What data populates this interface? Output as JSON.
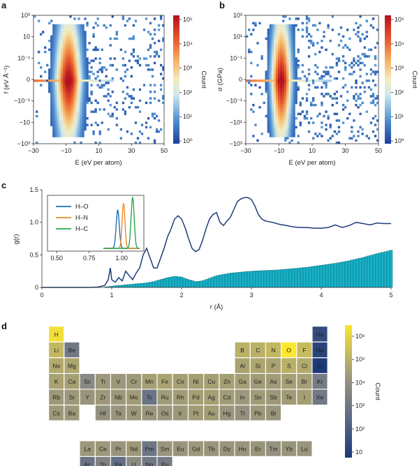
{
  "panels": [
    {
      "letter": "a"
    },
    {
      "letter": "b"
    },
    {
      "letter": "c"
    },
    {
      "letter": "d"
    }
  ],
  "chart_data": [
    {
      "panel": "a",
      "type": "heatmap",
      "xlabel": "E (eV per atom)",
      "ylabel": "f (eV Å⁻¹)",
      "xlim": [
        -30,
        50
      ],
      "xticks": [
        "−30",
        "−10",
        "10",
        "30",
        "50"
      ],
      "yticks": [
        "10³",
        "10",
        "10⁻¹",
        "0",
        "−10⁻¹",
        "−10",
        "−10³"
      ],
      "yscale": "symlog",
      "colorbar": {
        "label": "Count",
        "ticks": [
          "10⁵",
          "10⁴",
          "10³",
          "10²",
          "10¹",
          "10⁰"
        ],
        "range": [
          1,
          300000
        ]
      },
      "density": {
        "peak_E": -8,
        "note_not_rendered": ""
      }
    },
    {
      "panel": "b",
      "type": "heatmap",
      "xlabel": "E (eV per atom)",
      "ylabel": "σ (GPa)",
      "xlim": [
        -30,
        50
      ],
      "xticks": [
        "−30",
        "−10",
        "10",
        "30",
        "50"
      ],
      "yticks": [
        "10³",
        "10¹",
        "10⁻¹",
        "0",
        "−10⁻¹",
        "−10¹",
        "−10³"
      ],
      "yscale": "symlog",
      "colorbar": {
        "label": "Count",
        "ticks": [
          "10⁵",
          "10⁴",
          "10³",
          "10²",
          "10¹",
          "10⁰"
        ],
        "range": [
          1,
          100000
        ]
      }
    },
    {
      "panel": "c",
      "type": "line",
      "xlabel": "r (Å)",
      "ylabel": "g(r)",
      "xlim": [
        0,
        5
      ],
      "ylim": [
        0,
        1.5
      ],
      "xticks": [
        "0",
        "1",
        "2",
        "3",
        "4",
        "5"
      ],
      "yticks": [
        "0",
        "0.5",
        "1.0",
        "1.5"
      ],
      "series": [
        {
          "kind": "line",
          "color": "#1f3a7a",
          "x": [
            0,
            0.7,
            0.8,
            0.9,
            0.95,
            0.98,
            1.0,
            1.05,
            1.1,
            1.15,
            1.2,
            1.25,
            1.3,
            1.35,
            1.4,
            1.45,
            1.5,
            1.55,
            1.6,
            1.65,
            1.7,
            1.75,
            1.8,
            1.85,
            1.9,
            1.95,
            2.0,
            2.05,
            2.1,
            2.15,
            2.2,
            2.25,
            2.3,
            2.35,
            2.4,
            2.45,
            2.5,
            2.55,
            2.6,
            2.65,
            2.7,
            2.75,
            2.8,
            2.85,
            2.9,
            2.95,
            3.0,
            3.05,
            3.1,
            3.15,
            3.2,
            3.3,
            3.4,
            3.5,
            3.6,
            3.7,
            3.8,
            3.9,
            4.0,
            4.1,
            4.2,
            4.3,
            4.4,
            4.5,
            4.6,
            4.7,
            4.8,
            4.9,
            5.0
          ],
          "y": [
            0,
            0,
            0.005,
            0.03,
            0.12,
            0.3,
            0.12,
            0.08,
            0.15,
            0.1,
            0.25,
            0.18,
            0.12,
            0.22,
            0.3,
            0.5,
            0.6,
            0.45,
            0.3,
            0.3,
            0.45,
            0.6,
            0.78,
            0.9,
            1.05,
            1.1,
            1.05,
            0.92,
            0.75,
            0.6,
            0.55,
            0.58,
            0.72,
            0.9,
            1.05,
            1.12,
            1.15,
            1.0,
            0.95,
            1.02,
            1.08,
            1.2,
            1.32,
            1.36,
            1.38,
            1.38,
            1.35,
            1.25,
            1.12,
            1.05,
            1.02,
            1.0,
            0.97,
            0.95,
            0.93,
            0.92,
            0.92,
            0.91,
            0.91,
            0.92,
            0.96,
            0.92,
            0.95,
            1.0,
            0.98,
            0.96,
            0.99,
            0.98,
            0.98
          ]
        },
        {
          "kind": "histogram",
          "color": "#17b3c9",
          "x": [
            0.9,
            1.0,
            1.1,
            1.2,
            1.3,
            1.4,
            1.5,
            1.6,
            1.7,
            1.8,
            1.9,
            2.0,
            2.1,
            2.2,
            2.3,
            2.4,
            2.5,
            2.6,
            2.7,
            2.8,
            2.9,
            3.0,
            3.2,
            3.4,
            3.6,
            3.8,
            4.0,
            4.2,
            4.4,
            4.6,
            4.8,
            5.0
          ],
          "y": [
            0.005,
            0.02,
            0.03,
            0.04,
            0.05,
            0.06,
            0.07,
            0.09,
            0.12,
            0.15,
            0.17,
            0.16,
            0.12,
            0.09,
            0.1,
            0.14,
            0.18,
            0.2,
            0.22,
            0.23,
            0.24,
            0.25,
            0.26,
            0.27,
            0.29,
            0.31,
            0.34,
            0.37,
            0.41,
            0.46,
            0.52,
            0.57
          ]
        }
      ],
      "inset": {
        "xlim": [
          0.45,
          1.15
        ],
        "xticks": [
          "0.50",
          "0.75",
          "1.00"
        ],
        "series": [
          {
            "name": "H–O",
            "color": "#1f6fb4",
            "center": 0.97,
            "width": 0.012,
            "height": 0.75
          },
          {
            "name": "H–N",
            "color": "#f08a24",
            "center": 1.015,
            "width": 0.011,
            "height": 0.88
          },
          {
            "name": "H–C",
            "color": "#2aa84a",
            "center": 1.085,
            "width": 0.012,
            "height": 1.0
          }
        ]
      }
    },
    {
      "panel": "d",
      "type": "heatmap",
      "colorbar": {
        "label": "Count",
        "ticks": [
          "10⁶",
          "10⁵",
          "10⁴",
          "10³",
          "10²",
          "10"
        ]
      },
      "elements": [
        {
          "s": "H",
          "r": 0,
          "c": 0,
          "v": 6.2
        },
        {
          "s": "He",
          "r": 0,
          "c": 17,
          "v": 1.6
        },
        {
          "s": "Li",
          "r": 1,
          "c": 0,
          "v": 5.2
        },
        {
          "s": "Be",
          "r": 1,
          "c": 1,
          "v": 3.2
        },
        {
          "s": "B",
          "r": 1,
          "c": 12,
          "v": 5.0
        },
        {
          "s": "C",
          "r": 1,
          "c": 13,
          "v": 5.0
        },
        {
          "s": "N",
          "r": 1,
          "c": 14,
          "v": 5.2
        },
        {
          "s": "O",
          "r": 1,
          "c": 15,
          "v": 6.4
        },
        {
          "s": "F",
          "r": 1,
          "c": 16,
          "v": 5.3
        },
        {
          "s": "Ne",
          "r": 1,
          "c": 17,
          "v": 1.3
        },
        {
          "s": "Na",
          "r": 2,
          "c": 0,
          "v": 4.8
        },
        {
          "s": "Mg",
          "r": 2,
          "c": 1,
          "v": 4.7
        },
        {
          "s": "Al",
          "r": 2,
          "c": 12,
          "v": 4.6
        },
        {
          "s": "Si",
          "r": 2,
          "c": 13,
          "v": 4.7
        },
        {
          "s": "P",
          "r": 2,
          "c": 14,
          "v": 4.6
        },
        {
          "s": "S",
          "r": 2,
          "c": 15,
          "v": 5.0
        },
        {
          "s": "Cl",
          "r": 2,
          "c": 16,
          "v": 4.8
        },
        {
          "s": "Ar",
          "r": 2,
          "c": 17,
          "v": 1.0
        },
        {
          "s": "K",
          "r": 3,
          "c": 0,
          "v": 4.6
        },
        {
          "s": "Ca",
          "r": 3,
          "c": 1,
          "v": 4.5
        },
        {
          "s": "Sc",
          "r": 3,
          "c": 2,
          "v": 3.8
        },
        {
          "s": "Ti",
          "r": 3,
          "c": 3,
          "v": 4.3
        },
        {
          "s": "V",
          "r": 3,
          "c": 4,
          "v": 4.3
        },
        {
          "s": "Cr",
          "r": 3,
          "c": 5,
          "v": 4.3
        },
        {
          "s": "Mn",
          "r": 3,
          "c": 6,
          "v": 4.5
        },
        {
          "s": "Fe",
          "r": 3,
          "c": 7,
          "v": 4.6
        },
        {
          "s": "Co",
          "r": 3,
          "c": 8,
          "v": 4.5
        },
        {
          "s": "Ni",
          "r": 3,
          "c": 9,
          "v": 4.5
        },
        {
          "s": "Cu",
          "r": 3,
          "c": 10,
          "v": 4.5
        },
        {
          "s": "Zn",
          "r": 3,
          "c": 11,
          "v": 4.5
        },
        {
          "s": "Ga",
          "r": 3,
          "c": 12,
          "v": 4.5
        },
        {
          "s": "Ge",
          "r": 3,
          "c": 13,
          "v": 4.4
        },
        {
          "s": "As",
          "r": 3,
          "c": 14,
          "v": 4.4
        },
        {
          "s": "Se",
          "r": 3,
          "c": 15,
          "v": 4.5
        },
        {
          "s": "Br",
          "r": 3,
          "c": 16,
          "v": 4.5
        },
        {
          "s": "Kr",
          "r": 3,
          "c": 17,
          "v": 3.3
        },
        {
          "s": "Rb",
          "r": 4,
          "c": 0,
          "v": 4.3
        },
        {
          "s": "Sr",
          "r": 4,
          "c": 1,
          "v": 4.3
        },
        {
          "s": "Y",
          "r": 4,
          "c": 2,
          "v": 4.2
        },
        {
          "s": "Zr",
          "r": 4,
          "c": 3,
          "v": 4.3
        },
        {
          "s": "Nb",
          "r": 4,
          "c": 4,
          "v": 4.3
        },
        {
          "s": "Mo",
          "r": 4,
          "c": 5,
          "v": 4.4
        },
        {
          "s": "Tc",
          "r": 4,
          "c": 6,
          "v": 3.0
        },
        {
          "s": "Ru",
          "r": 4,
          "c": 7,
          "v": 4.4
        },
        {
          "s": "Rh",
          "r": 4,
          "c": 8,
          "v": 4.4
        },
        {
          "s": "Pd",
          "r": 4,
          "c": 9,
          "v": 4.5
        },
        {
          "s": "Ag",
          "r": 4,
          "c": 10,
          "v": 4.5
        },
        {
          "s": "Cd",
          "r": 4,
          "c": 11,
          "v": 4.4
        },
        {
          "s": "In",
          "r": 4,
          "c": 12,
          "v": 4.3
        },
        {
          "s": "Sn",
          "r": 4,
          "c": 13,
          "v": 4.4
        },
        {
          "s": "Sb",
          "r": 4,
          "c": 14,
          "v": 4.3
        },
        {
          "s": "Te",
          "r": 4,
          "c": 15,
          "v": 4.4
        },
        {
          "s": "I",
          "r": 4,
          "c": 16,
          "v": 4.5
        },
        {
          "s": "Xe",
          "r": 4,
          "c": 17,
          "v": 3.2
        },
        {
          "s": "Cs",
          "r": 5,
          "c": 0,
          "v": 4.3
        },
        {
          "s": "Ba",
          "r": 5,
          "c": 1,
          "v": 4.3
        },
        {
          "s": "Hf",
          "r": 5,
          "c": 3,
          "v": 4.1
        },
        {
          "s": "Ta",
          "r": 5,
          "c": 4,
          "v": 4.2
        },
        {
          "s": "W",
          "r": 5,
          "c": 5,
          "v": 4.3
        },
        {
          "s": "Re",
          "r": 5,
          "c": 6,
          "v": 4.2
        },
        {
          "s": "Os",
          "r": 5,
          "c": 7,
          "v": 4.2
        },
        {
          "s": "Ir",
          "r": 5,
          "c": 8,
          "v": 4.3
        },
        {
          "s": "Pt",
          "r": 5,
          "c": 9,
          "v": 4.4
        },
        {
          "s": "Au",
          "r": 5,
          "c": 10,
          "v": 4.4
        },
        {
          "s": "Hg",
          "r": 5,
          "c": 11,
          "v": 4.2
        },
        {
          "s": "Tl",
          "r": 5,
          "c": 12,
          "v": 4.1
        },
        {
          "s": "Pb",
          "r": 5,
          "c": 13,
          "v": 4.3
        },
        {
          "s": "Bi",
          "r": 5,
          "c": 14,
          "v": 4.2
        },
        {
          "s": "La",
          "r": 7,
          "c": 2,
          "v": 4.3
        },
        {
          "s": "Ce",
          "r": 7,
          "c": 3,
          "v": 4.3
        },
        {
          "s": "Pr",
          "r": 7,
          "c": 4,
          "v": 4.2
        },
        {
          "s": "Nd",
          "r": 7,
          "c": 5,
          "v": 4.3
        },
        {
          "s": "Pm",
          "r": 7,
          "c": 6,
          "v": 3.1
        },
        {
          "s": "Sm",
          "r": 7,
          "c": 7,
          "v": 4.2
        },
        {
          "s": "Eu",
          "r": 7,
          "c": 8,
          "v": 4.2
        },
        {
          "s": "Gd",
          "r": 7,
          "c": 9,
          "v": 4.3
        },
        {
          "s": "Tb",
          "r": 7,
          "c": 10,
          "v": 4.2
        },
        {
          "s": "Dy",
          "r": 7,
          "c": 11,
          "v": 4.2
        },
        {
          "s": "Ho",
          "r": 7,
          "c": 12,
          "v": 4.2
        },
        {
          "s": "Er",
          "r": 7,
          "c": 13,
          "v": 4.2
        },
        {
          "s": "Tm",
          "r": 7,
          "c": 14,
          "v": 4.1
        },
        {
          "s": "Yb",
          "r": 7,
          "c": 15,
          "v": 4.2
        },
        {
          "s": "Lu",
          "r": 7,
          "c": 16,
          "v": 4.2
        },
        {
          "s": "Ac",
          "r": 8,
          "c": 2,
          "v": 3.0
        },
        {
          "s": "Th",
          "r": 8,
          "c": 3,
          "v": 3.6
        },
        {
          "s": "Pa",
          "r": 8,
          "c": 4,
          "v": 2.8
        },
        {
          "s": "U",
          "r": 8,
          "c": 5,
          "v": 3.9
        },
        {
          "s": "Np",
          "r": 8,
          "c": 6,
          "v": 3.2
        },
        {
          "s": "Pu",
          "r": 8,
          "c": 7,
          "v": 3.3
        }
      ]
    }
  ]
}
